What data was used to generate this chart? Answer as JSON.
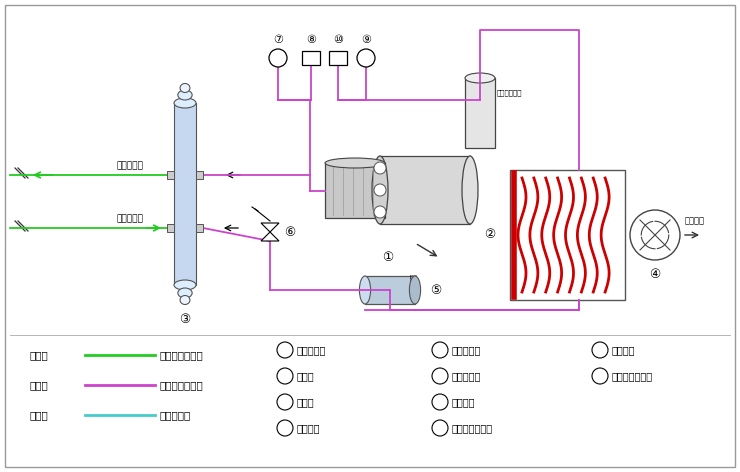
{
  "bg_color": "#ffffff",
  "pink": "#cc44cc",
  "green": "#22cc22",
  "cyan": "#44cccc",
  "red_coil": "#cc0000",
  "dark": "#333333",
  "mid": "#888888",
  "light_blue": "#c5d8f0",
  "legend_items": [
    {
      "label_left": "绿色线",
      "line_color": "#22cc22",
      "label_right": "载冷剂循环回路"
    },
    {
      "label_left": "红色线",
      "line_color": "#cc44cc",
      "label_right": "制冷剂循环回路"
    },
    {
      "label_left": "蓝色线",
      "line_color": "#44cccc",
      "label_right": "水循环回路"
    }
  ],
  "numbered_items_col1": [
    {
      "num": "1",
      "text": "螺杆压缩机"
    },
    {
      "num": "2",
      "text": "冷凝器"
    },
    {
      "num": "3",
      "text": "蒸发器"
    },
    {
      "num": "4",
      "text": "冷却风扇"
    }
  ],
  "numbered_items_col2": [
    {
      "num": "5",
      "text": "干燥过滤器"
    },
    {
      "num": "6",
      "text": "供液膨胀阀"
    },
    {
      "num": "7",
      "text": "低压力表"
    },
    {
      "num": "8",
      "text": "低压压力控制器"
    }
  ],
  "numbered_items_col3": [
    {
      "num": "9",
      "text": "高压力表"
    },
    {
      "num": "10",
      "text": "高压压力控制器"
    }
  ]
}
